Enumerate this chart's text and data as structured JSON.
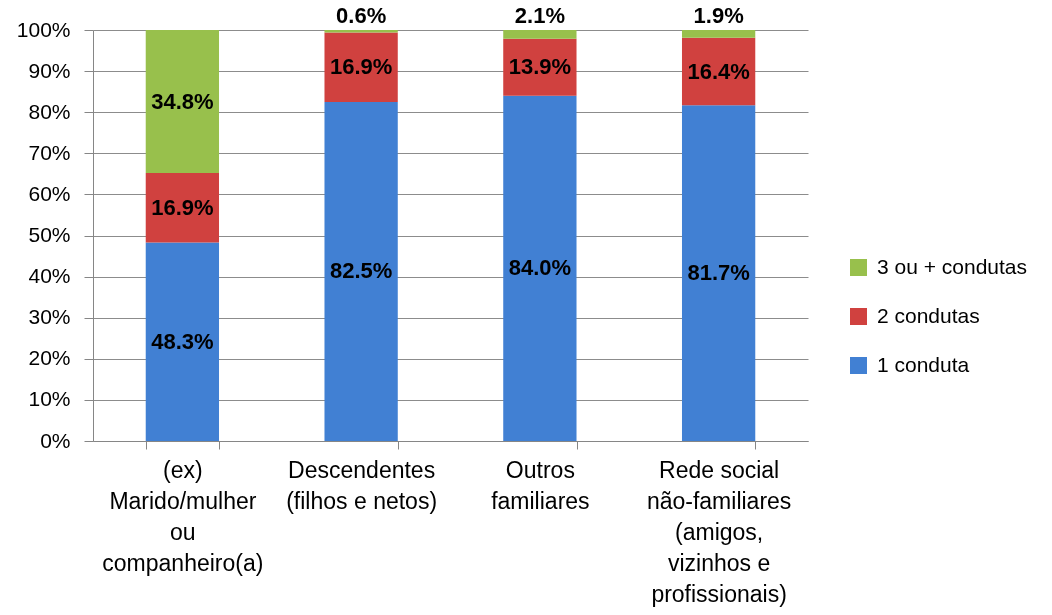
{
  "chart_data": {
    "type": "bar",
    "stacked": true,
    "categories": [
      "(ex)\nMarido/mulher\nou\ncompanheiro(a)",
      "Descendentes\n(filhos e netos)",
      "Outros\nfamiliares",
      "Rede social\nnão-familiares\n(amigos,\nvizinhos e\nprofissionais)"
    ],
    "series": [
      {
        "name": "1 conduta",
        "color": "#4180d3",
        "values": [
          48.3,
          82.5,
          84.0,
          81.7
        ],
        "value_labels": [
          "48.3%",
          "82.5%",
          "84.0%",
          "81.7%"
        ]
      },
      {
        "name": "2 condutas",
        "color": "#d0413f",
        "values": [
          16.9,
          16.9,
          13.9,
          16.4
        ],
        "value_labels": [
          "16.9%",
          "16.9%",
          "13.9%",
          "16.4%"
        ]
      },
      {
        "name": "3 ou + condutas",
        "color": "#98c04c",
        "values": [
          34.8,
          0.6,
          2.1,
          1.9
        ],
        "value_labels": [
          "34.8%",
          "0.6%",
          "2.1%",
          "1.9%"
        ]
      }
    ],
    "ylim": [
      0,
      100
    ],
    "yticks": [
      {
        "value": 0,
        "label": "0%"
      },
      {
        "value": 10,
        "label": "10%"
      },
      {
        "value": 20,
        "label": "20%"
      },
      {
        "value": 30,
        "label": "30%"
      },
      {
        "value": 40,
        "label": "40%"
      },
      {
        "value": 50,
        "label": "50%"
      },
      {
        "value": 60,
        "label": "60%"
      },
      {
        "value": 70,
        "label": "70%"
      },
      {
        "value": 80,
        "label": "80%"
      },
      {
        "value": 90,
        "label": "90%"
      },
      {
        "value": 100,
        "label": "100%"
      }
    ],
    "grid": "y",
    "legend": "right"
  }
}
